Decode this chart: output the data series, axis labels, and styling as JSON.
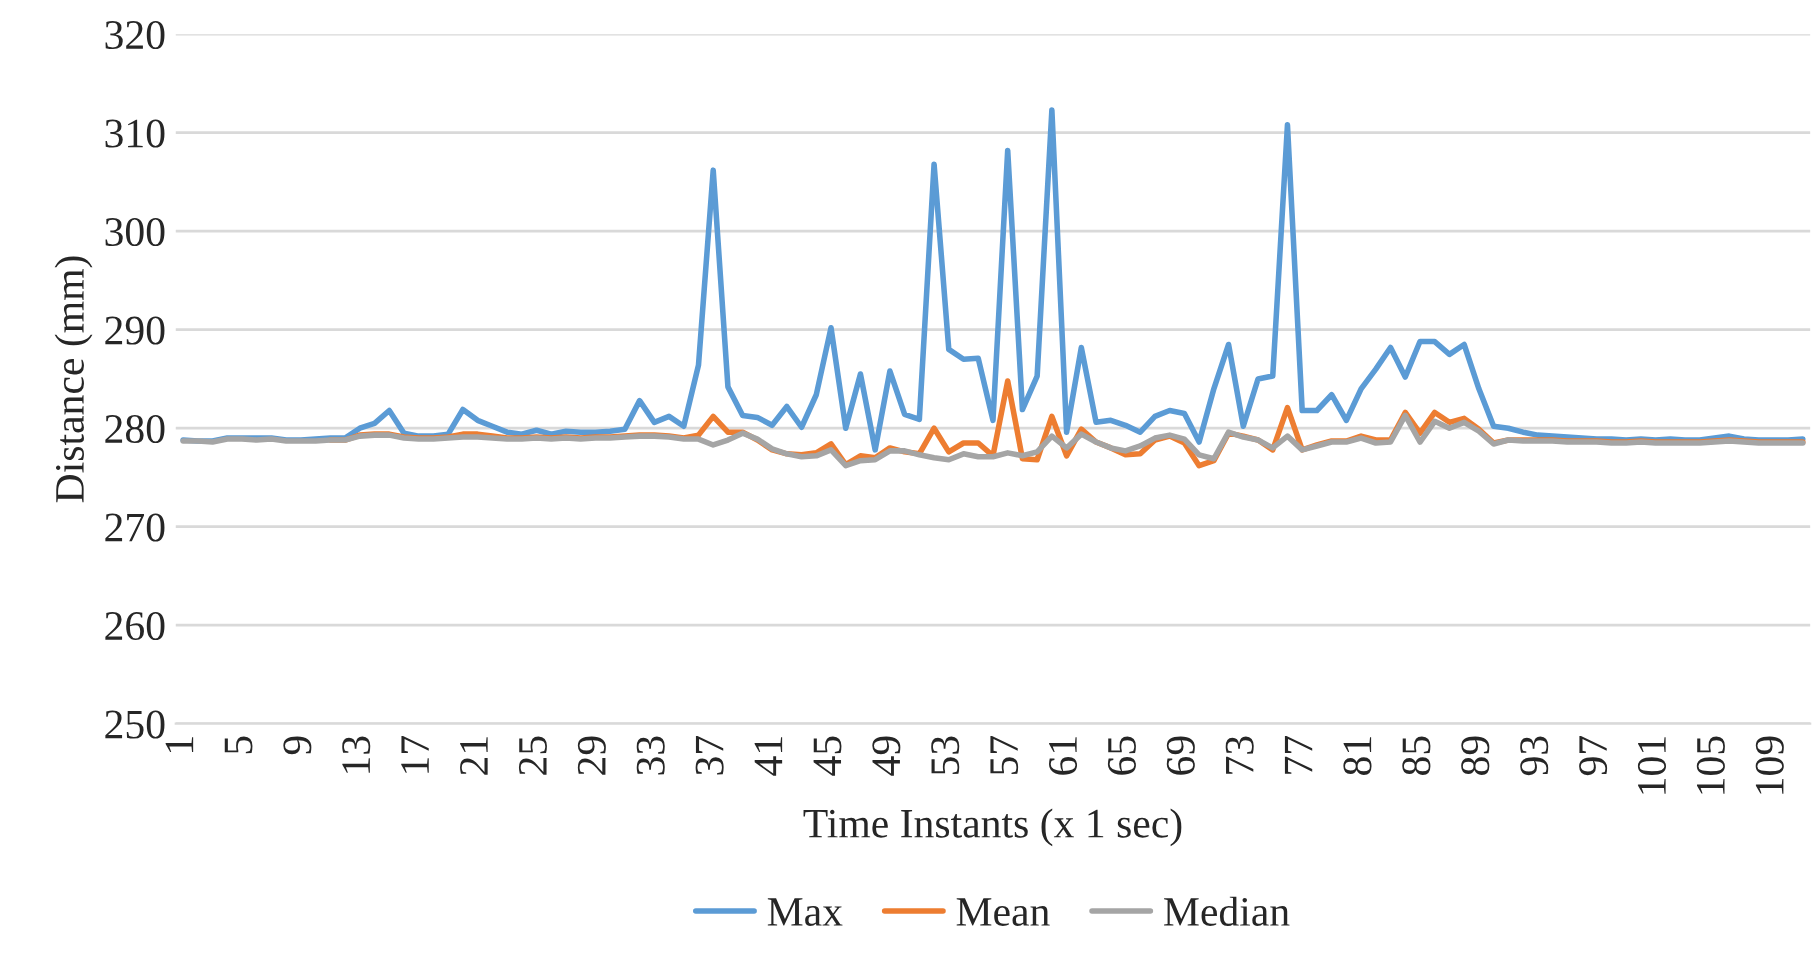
{
  "chart_data": {
    "type": "line",
    "xlabel": "Time Instants (x 1 sec)",
    "ylabel": "Distance (mm)",
    "categories": [
      "1",
      null,
      null,
      null,
      "5",
      null,
      null,
      null,
      "9",
      null,
      null,
      null,
      "13",
      null,
      null,
      null,
      "17",
      null,
      null,
      null,
      "21",
      null,
      null,
      null,
      "25",
      null,
      null,
      null,
      "29",
      null,
      null,
      null,
      "33",
      null,
      null,
      null,
      "37",
      null,
      null,
      null,
      "41",
      null,
      null,
      null,
      "45",
      null,
      null,
      null,
      "49",
      null,
      null,
      null,
      "53",
      null,
      null,
      null,
      "57",
      null,
      null,
      null,
      "61",
      null,
      null,
      null,
      "65",
      null,
      null,
      null,
      "69",
      null,
      null,
      null,
      "73",
      null,
      null,
      null,
      "77",
      null,
      null,
      null,
      "81",
      null,
      null,
      null,
      "85",
      null,
      null,
      null,
      "89",
      null,
      null,
      null,
      "93",
      null,
      null,
      null,
      "97",
      null,
      null,
      null,
      "101",
      null,
      null,
      null,
      "105",
      null,
      null,
      null,
      "109",
      null,
      null
    ],
    "series": [
      {
        "name": "Max",
        "color": "#5b9bd5",
        "values": [
          278.8,
          278.7,
          278.7,
          279,
          279,
          279,
          279,
          278.8,
          278.8,
          278.9,
          279,
          279,
          280,
          280.5,
          281.8,
          279.5,
          279.2,
          279.2,
          279.4,
          281.9,
          280.8,
          280.2,
          279.6,
          279.4,
          279.8,
          279.4,
          279.7,
          279.6,
          279.6,
          279.7,
          279.9,
          282.8,
          280.6,
          281.2,
          280.2,
          286.4,
          306.2,
          284.2,
          281.3,
          281.1,
          280.3,
          282.2,
          280.1,
          283.4,
          290.2,
          280,
          285.5,
          277.8,
          285.8,
          281.4,
          280.9,
          306.8,
          288,
          287,
          287.1,
          280.8,
          308.2,
          281.9,
          285.3,
          312.3,
          279.6,
          288.2,
          280.6,
          280.8,
          280.3,
          279.6,
          281.2,
          281.8,
          281.5,
          278.6,
          284,
          288.5,
          280.2,
          285,
          285.3,
          310.8,
          281.8,
          281.8,
          283.4,
          280.8,
          284,
          286,
          288.2,
          285.2,
          288.8,
          288.8,
          287.5,
          288.5,
          284,
          280.2,
          280,
          279.6,
          279.3,
          279.2,
          279.1,
          279,
          278.9,
          278.9,
          278.8,
          278.9,
          278.8,
          278.9,
          278.8,
          278.8,
          279,
          279.2,
          278.9,
          278.8,
          278.8,
          278.8,
          278.9
        ]
      },
      {
        "name": "Mean",
        "color": "#ed7d31",
        "values": [
          null,
          null,
          null,
          null,
          null,
          null,
          null,
          null,
          null,
          null,
          278.8,
          278.8,
          279.3,
          279.4,
          279.4,
          279.1,
          279,
          279,
          279.1,
          279.4,
          279.4,
          279.2,
          279,
          279,
          279.1,
          279,
          279.1,
          279,
          279.1,
          279.1,
          279.2,
          279.3,
          279.3,
          279.2,
          279,
          279.3,
          281.2,
          279.6,
          279.6,
          278.8,
          277.8,
          277.4,
          277.3,
          277.5,
          278.4,
          276.3,
          277.2,
          277,
          278,
          277.6,
          277.4,
          280,
          277.6,
          278.5,
          278.5,
          277.2,
          284.8,
          276.9,
          276.8,
          281.2,
          277.2,
          279.9,
          278.6,
          278,
          277.3,
          277.4,
          278.8,
          279.2,
          278.5,
          276.2,
          276.7,
          279.5,
          279.2,
          278.8,
          277.8,
          282.1,
          277.8,
          278.3,
          278.7,
          278.7,
          279.2,
          278.8,
          278.8,
          281.6,
          279.5,
          281.6,
          280.6,
          281,
          279.9,
          278.5,
          278.8,
          278.8,
          278.8,
          278.8,
          278.7,
          278.7,
          278.7,
          278.6,
          278.6,
          278.7,
          278.6,
          278.6,
          278.6,
          278.6,
          278.7,
          278.8,
          278.7,
          278.6,
          278.6,
          278.6,
          278.6
        ]
      },
      {
        "name": "Median",
        "color": "#a5a5a5",
        "values": [
          278.7,
          278.7,
          278.6,
          278.9,
          278.9,
          278.8,
          278.9,
          278.7,
          278.7,
          278.7,
          278.8,
          278.8,
          279.2,
          279.3,
          279.3,
          279,
          278.9,
          278.9,
          279,
          279.1,
          279.1,
          279,
          278.9,
          278.9,
          279,
          278.9,
          279,
          278.9,
          279,
          279,
          279.1,
          279.2,
          279.2,
          279.1,
          278.9,
          278.9,
          278.3,
          278.8,
          279.5,
          278.9,
          277.9,
          277.4,
          277.1,
          277.2,
          277.8,
          276.2,
          276.7,
          276.8,
          277.7,
          277.7,
          277.3,
          277,
          276.8,
          277.4,
          277.1,
          277.1,
          277.5,
          277.2,
          277.6,
          279.2,
          278,
          279.4,
          278.6,
          278,
          277.7,
          278.2,
          279,
          279.3,
          278.9,
          277.3,
          276.9,
          279.6,
          279.1,
          278.8,
          278,
          279.2,
          277.8,
          278.2,
          278.6,
          278.6,
          279,
          278.5,
          278.6,
          281.3,
          278.6,
          280.7,
          280,
          280.6,
          279.7,
          278.4,
          278.8,
          278.7,
          278.7,
          278.7,
          278.6,
          278.6,
          278.6,
          278.5,
          278.5,
          278.6,
          278.5,
          278.5,
          278.5,
          278.5,
          278.6,
          278.7,
          278.6,
          278.5,
          278.5,
          278.5,
          278.5
        ]
      }
    ],
    "ylim": [
      250,
      320
    ],
    "yticks": [
      250,
      260,
      270,
      280,
      290,
      300,
      310,
      320
    ],
    "grid": "y",
    "legend": "bottom"
  }
}
